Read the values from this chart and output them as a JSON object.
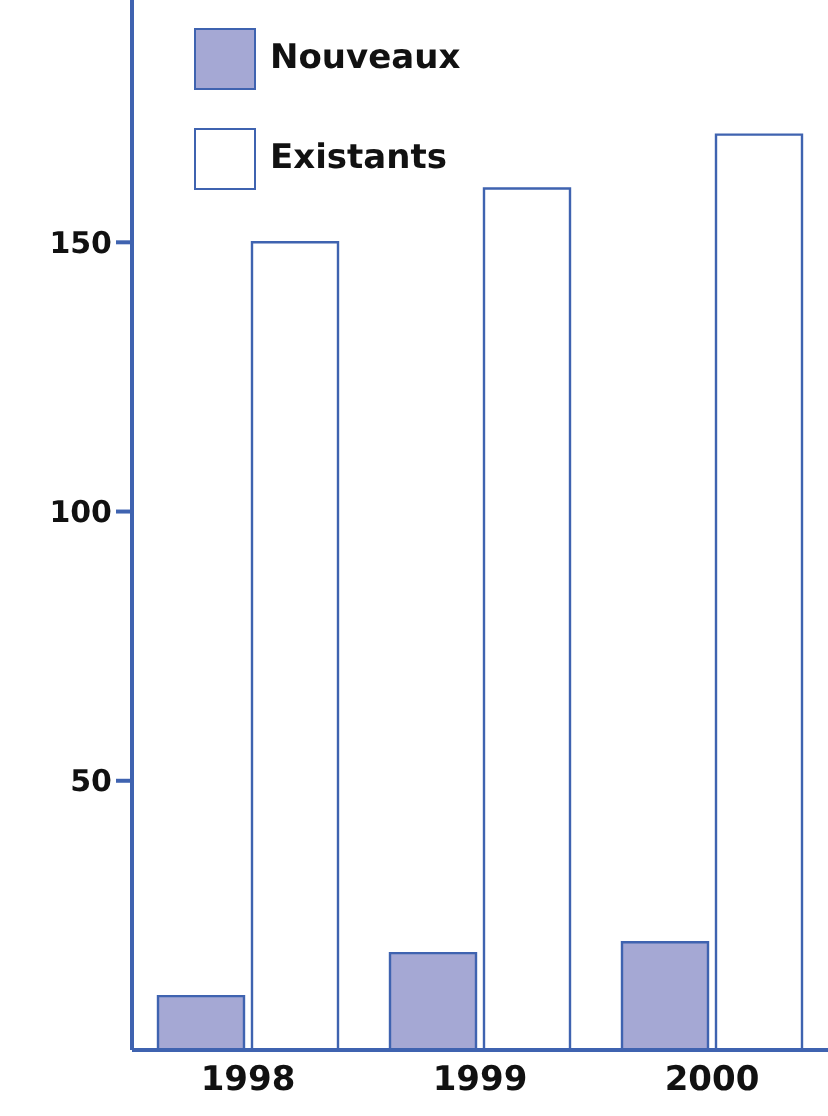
{
  "chart_data": {
    "type": "bar",
    "categories": [
      "1998",
      "1999",
      "2000"
    ],
    "series": [
      {
        "name": "Nouveaux",
        "color": "#a5a8d4",
        "values": [
          10,
          18,
          20
        ]
      },
      {
        "name": "Existants",
        "color": "#ffffff",
        "values": [
          150,
          160,
          170
        ]
      }
    ],
    "ylim": [
      0,
      195
    ],
    "yticks": [
      50,
      100,
      150
    ],
    "legend": "top left"
  }
}
